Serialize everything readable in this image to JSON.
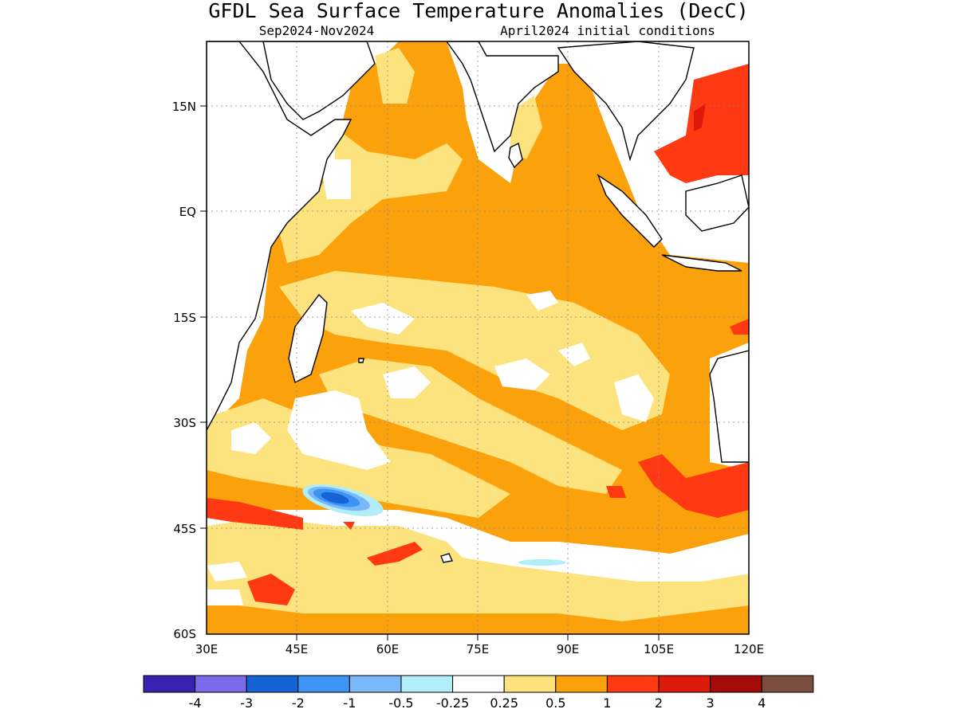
{
  "title": "GFDL Sea Surface Temperature Anomalies (DecC)",
  "subtitle_left": "Sep2024-Nov2024",
  "subtitle_right": "April2024 initial conditions",
  "map": {
    "lon_range": [
      30,
      120
    ],
    "lat_range": [
      -60,
      24
    ],
    "y_ticks": [
      "15N",
      "EQ",
      "15S",
      "30S",
      "45S",
      "60S"
    ],
    "x_ticks": [
      "30E",
      "45E",
      "60E",
      "75E",
      "90E",
      "105E",
      "120E"
    ],
    "dominant_anomaly_band": "0.5 to 1"
  },
  "colorbar": {
    "colors": [
      "#3a22b0",
      "#7b6bea",
      "#1663d6",
      "#3c95f5",
      "#79b9f9",
      "#b1eefa",
      "#ffffff",
      "#fde37d",
      "#fba10b",
      "#ff3a12",
      "#dd1a0a",
      "#a50b0b",
      "#7a4f3f"
    ],
    "labels": [
      "-4",
      "-3",
      "-2",
      "-1",
      "-0.5",
      "-0.25",
      "0.25",
      "0.5",
      "1",
      "2",
      "3",
      "4"
    ]
  }
}
